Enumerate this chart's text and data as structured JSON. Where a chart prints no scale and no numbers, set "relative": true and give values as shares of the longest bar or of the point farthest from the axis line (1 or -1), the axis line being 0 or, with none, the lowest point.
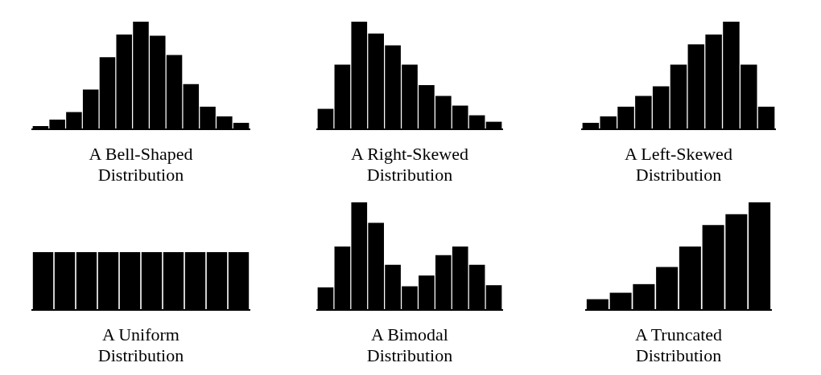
{
  "chart_data": [
    {
      "type": "bar",
      "title": "A Bell-Shaped\nDistribution",
      "relative": true,
      "color": "#000000",
      "categories": [
        null,
        null,
        null,
        null,
        null,
        null,
        null,
        null,
        null,
        null,
        null,
        null,
        null
      ],
      "values": [
        0.03,
        0.09,
        0.16,
        0.37,
        0.67,
        0.88,
        1,
        0.87,
        0.69,
        0.42,
        0.21,
        0.12,
        0.06
      ]
    },
    {
      "type": "bar",
      "title": "A Right-Skewed\nDistribution",
      "relative": true,
      "color": "#000000",
      "categories": [
        null,
        null,
        null,
        null,
        null,
        null,
        null,
        null,
        null,
        null,
        null
      ],
      "values": [
        0.19,
        0.6,
        1,
        0.89,
        0.78,
        0.6,
        0.41,
        0.31,
        0.22,
        0.13,
        0.07
      ]
    },
    {
      "type": "bar",
      "title": "A Left-Skewed\nDistribution",
      "relative": true,
      "color": "#000000",
      "categories": [
        null,
        null,
        null,
        null,
        null,
        null,
        null,
        null,
        null,
        null,
        null
      ],
      "values": [
        0.06,
        0.12,
        0.21,
        0.31,
        0.4,
        0.6,
        0.79,
        0.88,
        1,
        0.6,
        0.21
      ]
    },
    {
      "type": "bar",
      "title": "A Uniform\nDistribution",
      "relative": true,
      "color": "#000000",
      "categories": [
        null,
        null,
        null,
        null,
        null,
        null,
        null,
        null,
        null,
        null
      ],
      "values": [
        1,
        1,
        1,
        1,
        1,
        1,
        1,
        1,
        1,
        1
      ]
    },
    {
      "type": "bar",
      "title": "A Bimodal\nDistribution",
      "relative": true,
      "color": "#000000",
      "categories": [
        null,
        null,
        null,
        null,
        null,
        null,
        null,
        null,
        null,
        null,
        null
      ],
      "values": [
        0.21,
        0.59,
        1,
        0.81,
        0.42,
        0.22,
        0.32,
        0.51,
        0.59,
        0.42,
        0.23
      ]
    },
    {
      "type": "bar",
      "title": "A Truncated\nDistribution",
      "relative": true,
      "color": "#000000",
      "categories": [
        null,
        null,
        null,
        null,
        null,
        null,
        null,
        null
      ],
      "values": [
        0.1,
        0.16,
        0.24,
        0.4,
        0.59,
        0.79,
        0.89,
        1
      ]
    }
  ]
}
